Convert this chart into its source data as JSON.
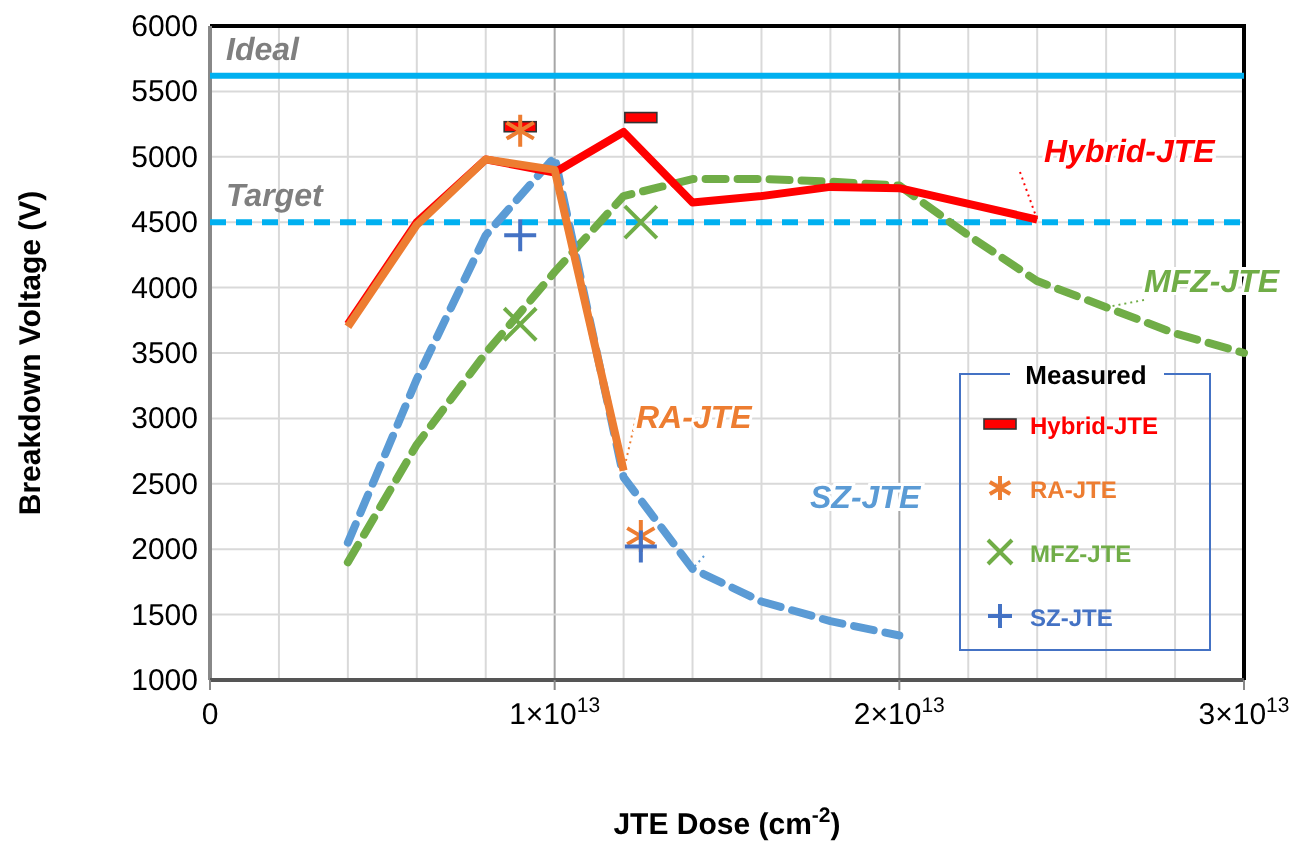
{
  "chart_data": {
    "type": "line",
    "xlabel": "JTE Dose (cm$^{-2}$)",
    "ylabel": "Breakdown Voltage (V)",
    "legend_title": "Measured",
    "legend": "bottom right",
    "grid": true,
    "xlim": [
      0,
      30000000000000.0
    ],
    "ylim": [
      1000,
      6000
    ],
    "xticks": [
      {
        "value": 0,
        "label": "0"
      },
      {
        "value": 2000000000000.0,
        "label": null
      },
      {
        "value": 4000000000000.0,
        "label": null
      },
      {
        "value": 6000000000000.0,
        "label": null
      },
      {
        "value": 8000000000000.0,
        "label": null
      },
      {
        "value": 10000000000000.0,
        "label": "1×10$^{13}$"
      },
      {
        "value": 12000000000000.0,
        "label": null
      },
      {
        "value": 14000000000000.0,
        "label": null
      },
      {
        "value": 16000000000000.0,
        "label": null
      },
      {
        "value": 18000000000000.0,
        "label": null
      },
      {
        "value": 20000000000000.0,
        "label": "2×10$^{13}$"
      },
      {
        "value": 22000000000000.0,
        "label": null
      },
      {
        "value": 24000000000000.0,
        "label": null
      },
      {
        "value": 26000000000000.0,
        "label": null
      },
      {
        "value": 28000000000000.0,
        "label": null
      },
      {
        "value": 30000000000000.0,
        "label": "3×10$^{13}$"
      }
    ],
    "yticks": [
      1000,
      1500,
      2000,
      2500,
      3000,
      3500,
      4000,
      4500,
      5000,
      5500,
      6000
    ],
    "ref_lines": [
      {
        "axis": "y",
        "value": 5620,
        "label": "Ideal",
        "color": "#00b0f0",
        "line_style": "solid"
      },
      {
        "axis": "y",
        "value": 4500,
        "label": "Target",
        "color": "#00b0f0",
        "line_style": "dashed"
      }
    ],
    "series": [
      {
        "name": "MFZ-JTE",
        "color": "#70ad47",
        "line_style": "dashed",
        "x": [
          4000000000000.0,
          6000000000000.0,
          8000000000000.0,
          10000000000000.0,
          12000000000000.0,
          14000000000000.0,
          16000000000000.0,
          18000000000000.0,
          20000000000000.0,
          22000000000000.0,
          24000000000000.0,
          26000000000000.0,
          28000000000000.0,
          30000000000000.0
        ],
        "values": [
          1900,
          2800,
          3500,
          4120,
          4700,
          4830,
          4830,
          4810,
          4780,
          4400,
          4050,
          3850,
          3650,
          3500
        ]
      },
      {
        "name": "SZ-JTE",
        "color": "#5b9bd5",
        "line_style": "dashed",
        "x": [
          4000000000000.0,
          6000000000000.0,
          8000000000000.0,
          10000000000000.0,
          12000000000000.0,
          14000000000000.0,
          16000000000000.0,
          18000000000000.0,
          20000000000000.0
        ],
        "values": [
          2050,
          3300,
          4400,
          5000,
          2550,
          1850,
          1600,
          1450,
          1340
        ]
      },
      {
        "name": "Hybrid-JTE",
        "color": "#ff0000",
        "line_style": "solid",
        "x": [
          4000000000000.0,
          6000000000000.0,
          8000000000000.0,
          10000000000000.0,
          12000000000000.0,
          14000000000000.0,
          16000000000000.0,
          18000000000000.0,
          20000000000000.0,
          24000000000000.0
        ],
        "values": [
          3720,
          4500,
          4980,
          4880,
          5190,
          4650,
          4700,
          4770,
          4760,
          4520
        ]
      },
      {
        "name": "RA-JTE",
        "color": "#ed7d31",
        "line_style": "solid",
        "x": [
          4000000000000.0,
          6000000000000.0,
          8000000000000.0,
          10000000000000.0,
          12000000000000.0
        ],
        "values": [
          3700,
          4480,
          4980,
          4900,
          2600
        ]
      },
      {
        "name": "Hybrid-JTE",
        "type": "scatter",
        "color": "#ff0000",
        "marker": "square",
        "x": [
          9000000000000.0,
          12500000000000.0
        ],
        "values": [
          5230,
          5300
        ]
      },
      {
        "name": "RA-JTE",
        "type": "scatter",
        "color": "#ed7d31",
        "x": [
          9000000000000.0,
          12500000000000.0
        ],
        "values": [
          5200,
          2100
        ]
      },
      {
        "name": "MFZ-JTE",
        "type": "scatter",
        "color": "#70ad47",
        "marker": "x",
        "x": [
          9000000000000.0,
          12500000000000.0
        ],
        "values": [
          3720,
          4500
        ]
      },
      {
        "name": "SZ-JTE",
        "type": "scatter",
        "color": "#4472c4",
        "marker": "cross",
        "x": [
          9000000000000.0,
          12500000000000.0
        ],
        "values": [
          4400,
          2020
        ]
      }
    ]
  }
}
